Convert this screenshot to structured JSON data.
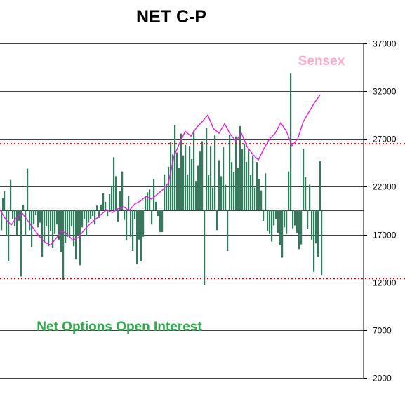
{
  "chart_data": {
    "type": "bar",
    "title": "NET C-P",
    "series_labels": {
      "sensex": "Sensex",
      "net_oi": "Net Options Open Interest"
    },
    "right_axis": {
      "min": 2000,
      "max": 37000,
      "ticks": [
        "37000",
        "32000",
        "27000",
        "22000",
        "17000",
        "12000",
        "7000",
        "2000"
      ]
    },
    "grid": true,
    "reference_lines": [
      26500,
      12400
    ],
    "colors": {
      "bars": "#2e7d5b",
      "sensex_line": "#e020e0",
      "sensex_label": "#ffaacc",
      "oi_label": "#2eaa4a",
      "ref_line": "#cc0000"
    },
    "sensex": [
      [
        0,
        19600
      ],
      [
        8,
        18600
      ],
      [
        16,
        18000
      ],
      [
        24,
        18800
      ],
      [
        32,
        19200
      ],
      [
        40,
        18400
      ],
      [
        48,
        17600
      ],
      [
        56,
        16800
      ],
      [
        64,
        16200
      ],
      [
        72,
        15900
      ],
      [
        80,
        16600
      ],
      [
        88,
        17400
      ],
      [
        96,
        17000
      ],
      [
        104,
        16400
      ],
      [
        112,
        16700
      ],
      [
        120,
        17500
      ],
      [
        128,
        18100
      ],
      [
        136,
        18600
      ],
      [
        144,
        19100
      ],
      [
        152,
        19600
      ],
      [
        160,
        19300
      ],
      [
        168,
        19700
      ],
      [
        176,
        19900
      ],
      [
        184,
        19500
      ],
      [
        192,
        20200
      ],
      [
        200,
        20500
      ],
      [
        208,
        21000
      ],
      [
        216,
        20700
      ],
      [
        224,
        21200
      ],
      [
        232,
        21700
      ],
      [
        240,
        22400
      ],
      [
        248,
        25200
      ],
      [
        256,
        26600
      ],
      [
        264,
        27800
      ],
      [
        272,
        27300
      ],
      [
        280,
        28200
      ],
      [
        288,
        28800
      ],
      [
        296,
        29500
      ],
      [
        304,
        28100
      ],
      [
        312,
        27600
      ],
      [
        320,
        28600
      ],
      [
        328,
        27500
      ],
      [
        336,
        26800
      ],
      [
        344,
        27600
      ],
      [
        352,
        26200
      ],
      [
        360,
        25400
      ],
      [
        368,
        24800
      ],
      [
        376,
        26000
      ],
      [
        384,
        27000
      ],
      [
        392,
        27600
      ],
      [
        400,
        28700
      ],
      [
        408,
        27800
      ],
      [
        416,
        26300
      ],
      [
        424,
        27000
      ],
      [
        432,
        28800
      ],
      [
        440,
        29800
      ],
      [
        448,
        30800
      ],
      [
        456,
        31600
      ]
    ],
    "net_oi_bars": [
      [
        1,
        -2100
      ],
      [
        3,
        1300
      ],
      [
        5,
        2000
      ],
      [
        8,
        -2700
      ],
      [
        11,
        -5400
      ],
      [
        14,
        3200
      ],
      [
        17,
        -900
      ],
      [
        20,
        -1700
      ],
      [
        23,
        -2600
      ],
      [
        26,
        -1100
      ],
      [
        29,
        -7000
      ],
      [
        32,
        600
      ],
      [
        35,
        -2700
      ],
      [
        38,
        4400
      ],
      [
        41,
        -2100
      ],
      [
        44,
        -3900
      ],
      [
        47,
        -1500
      ],
      [
        50,
        -500
      ],
      [
        53,
        -1800
      ],
      [
        56,
        -1300
      ],
      [
        59,
        -4900
      ],
      [
        62,
        -3300
      ],
      [
        65,
        -1700
      ],
      [
        68,
        -3800
      ],
      [
        71,
        -2200
      ],
      [
        74,
        -4000
      ],
      [
        77,
        -2500
      ],
      [
        80,
        -1500
      ],
      [
        83,
        -3100
      ],
      [
        86,
        -4400
      ],
      [
        89,
        -7400
      ],
      [
        92,
        -3400
      ],
      [
        95,
        -2800
      ],
      [
        98,
        -2900
      ],
      [
        101,
        -1700
      ],
      [
        104,
        -3800
      ],
      [
        107,
        -5200
      ],
      [
        110,
        -2600
      ],
      [
        113,
        -5800
      ],
      [
        116,
        -1800
      ],
      [
        119,
        -900
      ],
      [
        122,
        -2700
      ],
      [
        125,
        -1300
      ],
      [
        128,
        -900
      ],
      [
        131,
        -600
      ],
      [
        134,
        -1500
      ],
      [
        137,
        500
      ],
      [
        140,
        -800
      ],
      [
        143,
        600
      ],
      [
        146,
        1800
      ],
      [
        149,
        900
      ],
      [
        152,
        -600
      ],
      [
        155,
        1700
      ],
      [
        158,
        2600
      ],
      [
        161,
        5600
      ],
      [
        164,
        3600
      ],
      [
        167,
        -1200
      ],
      [
        170,
        2000
      ],
      [
        173,
        4100
      ],
      [
        176,
        -1000
      ],
      [
        179,
        -3200
      ],
      [
        182,
        1500
      ],
      [
        185,
        -2800
      ],
      [
        188,
        -4300
      ],
      [
        191,
        -900
      ],
      [
        194,
        -5700
      ],
      [
        197,
        -3100
      ],
      [
        200,
        -5400
      ],
      [
        203,
        -2800
      ],
      [
        206,
        1500
      ],
      [
        209,
        1900
      ],
      [
        212,
        2200
      ],
      [
        215,
        -1500
      ],
      [
        218,
        3300
      ],
      [
        221,
        900
      ],
      [
        224,
        -600
      ],
      [
        227,
        -2300
      ],
      [
        230,
        -2300
      ],
      [
        233,
        3800
      ],
      [
        236,
        2800
      ],
      [
        239,
        4600
      ],
      [
        242,
        7200
      ],
      [
        245,
        5900
      ],
      [
        248,
        9000
      ],
      [
        251,
        6100
      ],
      [
        254,
        4500
      ],
      [
        257,
        8100
      ],
      [
        260,
        5800
      ],
      [
        263,
        6900
      ],
      [
        266,
        3800
      ],
      [
        269,
        6800
      ],
      [
        272,
        5400
      ],
      [
        275,
        8400
      ],
      [
        278,
        3100
      ],
      [
        281,
        4700
      ],
      [
        284,
        6200
      ],
      [
        287,
        7300
      ],
      [
        290,
        -7900
      ],
      [
        293,
        8700
      ],
      [
        296,
        3700
      ],
      [
        299,
        6800
      ],
      [
        302,
        2400
      ],
      [
        305,
        7900
      ],
      [
        308,
        -2100
      ],
      [
        311,
        5300
      ],
      [
        314,
        3600
      ],
      [
        317,
        6700
      ],
      [
        320,
        2700
      ],
      [
        323,
        -4300
      ],
      [
        326,
        8000
      ],
      [
        329,
        5100
      ],
      [
        332,
        4000
      ],
      [
        335,
        7800
      ],
      [
        338,
        4500
      ],
      [
        341,
        8900
      ],
      [
        344,
        6500
      ],
      [
        347,
        7000
      ],
      [
        350,
        5100
      ],
      [
        353,
        6400
      ],
      [
        356,
        3700
      ],
      [
        359,
        5800
      ],
      [
        362,
        2400
      ],
      [
        365,
        5100
      ],
      [
        368,
        3300
      ],
      [
        371,
        2100
      ],
      [
        374,
        -1100
      ],
      [
        377,
        3900
      ],
      [
        380,
        -2200
      ],
      [
        383,
        -2500
      ],
      [
        386,
        -3300
      ],
      [
        389,
        -1600
      ],
      [
        392,
        -900
      ],
      [
        395,
        -2400
      ],
      [
        398,
        -3700
      ],
      [
        401,
        -5000
      ],
      [
        404,
        -1800
      ],
      [
        407,
        -2500
      ],
      [
        410,
        4100
      ],
      [
        413,
        14500
      ],
      [
        416,
        -1900
      ],
      [
        419,
        -1600
      ],
      [
        422,
        -2400
      ],
      [
        425,
        -4100
      ],
      [
        428,
        -3600
      ],
      [
        431,
        6500
      ],
      [
        434,
        3500
      ],
      [
        437,
        -2000
      ],
      [
        440,
        2700
      ],
      [
        443,
        -3100
      ],
      [
        446,
        -6500
      ],
      [
        449,
        -3500
      ],
      [
        452,
        -4900
      ],
      [
        455,
        5200
      ],
      [
        457,
        -6900
      ]
    ]
  }
}
